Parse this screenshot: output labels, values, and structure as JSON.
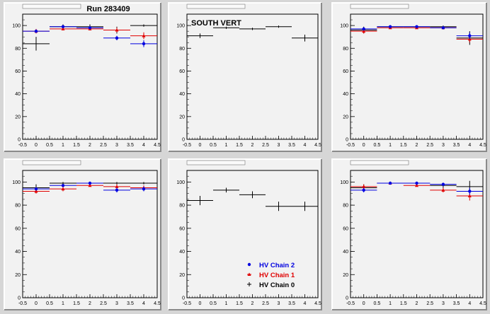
{
  "canvas": {
    "run_label": "Run 283409",
    "section_label": "SOUTH VERT",
    "background": "#d6d6d6",
    "pad_fill": "#f2f2f2"
  },
  "colors": {
    "hv_chain_2": "#0000e0",
    "hv_chain_1": "#e00000",
    "hv_chain_0": "#000000"
  },
  "legend": [
    {
      "label": "HV Chain 2",
      "color": "#0000e0",
      "marker": "circle"
    },
    {
      "label": "HV Chain 1",
      "color": "#e00000",
      "marker": "triangle"
    },
    {
      "label": "HV Chain 0",
      "color": "#000000",
      "marker": "cross"
    }
  ],
  "chart_data": [
    {
      "type": "scatter",
      "pad": 0,
      "title": "",
      "xlim": [
        -0.5,
        4.5
      ],
      "ylim": [
        0,
        110
      ],
      "x_ticks": [
        "-0.5",
        "0",
        "0.5",
        "1",
        "1.5",
        "2",
        "2.5",
        "3",
        "3.5",
        "4",
        "4.5"
      ],
      "y_ticks": [
        "0",
        "20",
        "40",
        "60",
        "80",
        "100"
      ],
      "series": [
        {
          "color": "#000000",
          "marker": "cross",
          "x": [
            0,
            1,
            2,
            3,
            4
          ],
          "y": [
            84,
            99,
            99,
            96,
            100
          ],
          "yerr": [
            6,
            2,
            2,
            3,
            1
          ]
        },
        {
          "color": "#e00000",
          "marker": "triangle",
          "x": [
            0,
            1,
            2,
            3,
            4
          ],
          "y": [
            95,
            97,
            97,
            96,
            91
          ],
          "yerr": [
            2,
            1,
            1,
            2,
            3
          ]
        },
        {
          "color": "#0000e0",
          "marker": "circle",
          "x": [
            0,
            1,
            2,
            3,
            4
          ],
          "y": [
            95,
            99,
            98,
            89,
            84
          ],
          "yerr": [
            1,
            1,
            1,
            2,
            3
          ]
        }
      ]
    },
    {
      "type": "scatter",
      "pad": 1,
      "title": "",
      "xlim": [
        -0.5,
        4.5
      ],
      "ylim": [
        0,
        110
      ],
      "x_ticks": [
        "-0.5",
        "0",
        "0.5",
        "1",
        "1.5",
        "2",
        "2.5",
        "3",
        "3.5",
        "4",
        "4.5"
      ],
      "y_ticks": [
        "0",
        "20",
        "40",
        "60",
        "80",
        "100"
      ],
      "series": [
        {
          "color": "#000000",
          "marker": "cross",
          "x": [
            0,
            1,
            2,
            3,
            4
          ],
          "y": [
            91,
            98,
            97,
            99,
            89
          ],
          "yerr": [
            2,
            1,
            1,
            1,
            3
          ]
        }
      ]
    },
    {
      "type": "scatter",
      "pad": 2,
      "title": "",
      "xlim": [
        -0.5,
        4.5
      ],
      "ylim": [
        0,
        110
      ],
      "x_ticks": [
        "-0.5",
        "0",
        "0.5",
        "1",
        "1.5",
        "2",
        "2.5",
        "3",
        "3.5",
        "4",
        "4.5"
      ],
      "y_ticks": [
        "0",
        "20",
        "40",
        "60",
        "80",
        "100"
      ],
      "series": [
        {
          "color": "#000000",
          "marker": "cross",
          "x": [
            0,
            1,
            2,
            3,
            4
          ],
          "y": [
            96,
            99,
            99,
            99,
            89
          ],
          "yerr": [
            3,
            1,
            1,
            1,
            6
          ]
        },
        {
          "color": "#e00000",
          "marker": "triangle",
          "x": [
            0,
            1,
            2,
            3,
            4
          ],
          "y": [
            95,
            98,
            98,
            98,
            88
          ],
          "yerr": [
            2,
            1,
            1,
            1,
            3
          ]
        },
        {
          "color": "#0000e0",
          "marker": "circle",
          "x": [
            0,
            1,
            2,
            3,
            4
          ],
          "y": [
            97,
            99,
            99,
            98,
            91
          ],
          "yerr": [
            1,
            1,
            1,
            1,
            3
          ]
        }
      ]
    },
    {
      "type": "scatter",
      "pad": 3,
      "title": "",
      "xlim": [
        -0.5,
        4.5
      ],
      "ylim": [
        0,
        110
      ],
      "x_ticks": [
        "-0.5",
        "0",
        "0.5",
        "1",
        "1.5",
        "2",
        "2.5",
        "3",
        "3.5",
        "4",
        "4.5"
      ],
      "y_ticks": [
        "0",
        "20",
        "40",
        "60",
        "80",
        "100"
      ],
      "series": [
        {
          "color": "#000000",
          "marker": "cross",
          "x": [
            0,
            1,
            2,
            3,
            4
          ],
          "y": [
            95,
            99,
            99,
            99,
            99
          ],
          "yerr": [
            3,
            1,
            1,
            1,
            1
          ]
        },
        {
          "color": "#e00000",
          "marker": "triangle",
          "x": [
            0,
            1,
            2,
            3,
            4
          ],
          "y": [
            92,
            94,
            97,
            96,
            95
          ],
          "yerr": [
            2,
            2,
            1,
            2,
            2
          ]
        },
        {
          "color": "#0000e0",
          "marker": "circle",
          "x": [
            0,
            1,
            2,
            3,
            4
          ],
          "y": [
            94,
            97,
            99,
            93,
            94
          ],
          "yerr": [
            1,
            1,
            1,
            2,
            2
          ]
        }
      ]
    },
    {
      "type": "scatter",
      "pad": 4,
      "title": "",
      "xlim": [
        -0.5,
        4.5
      ],
      "ylim": [
        0,
        110
      ],
      "x_ticks": [
        "-0.5",
        "0",
        "0.5",
        "1",
        "1.5",
        "2",
        "2.5",
        "3",
        "3.5",
        "4",
        "4.5"
      ],
      "y_ticks": [
        "0",
        "20",
        "40",
        "60",
        "80",
        "100"
      ],
      "series": [
        {
          "color": "#000000",
          "marker": "cross",
          "x": [
            0,
            1,
            2,
            3,
            4
          ],
          "y": [
            84,
            93,
            89,
            79,
            79
          ],
          "yerr": [
            4,
            2,
            3,
            4,
            4
          ]
        }
      ]
    },
    {
      "type": "scatter",
      "pad": 5,
      "title": "",
      "xlim": [
        -0.5,
        4.5
      ],
      "ylim": [
        0,
        110
      ],
      "x_ticks": [
        "-0.5",
        "0",
        "0.5",
        "1",
        "1.5",
        "2",
        "2.5",
        "3",
        "3.5",
        "4",
        "4.5"
      ],
      "y_ticks": [
        "0",
        "20",
        "40",
        "60",
        "80",
        "100"
      ],
      "series": [
        {
          "color": "#000000",
          "marker": "cross",
          "x": [
            0,
            1,
            2,
            3,
            4
          ],
          "y": [
            95,
            99,
            99,
            97,
            96
          ],
          "yerr": [
            3,
            1,
            1,
            2,
            5
          ]
        },
        {
          "color": "#e00000",
          "marker": "triangle",
          "x": [
            0,
            1,
            2,
            3,
            4
          ],
          "y": [
            96,
            99,
            97,
            93,
            88
          ],
          "yerr": [
            2,
            1,
            1,
            2,
            4
          ]
        },
        {
          "color": "#0000e0",
          "marker": "circle",
          "x": [
            0,
            1,
            2,
            3,
            4
          ],
          "y": [
            93,
            99,
            99,
            98,
            92
          ],
          "yerr": [
            2,
            1,
            1,
            1,
            3
          ]
        }
      ]
    }
  ]
}
